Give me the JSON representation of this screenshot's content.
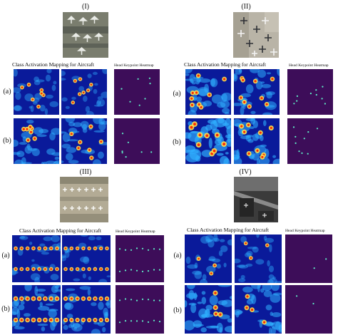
{
  "figure": {
    "panels": [
      {
        "numeral": "(I)",
        "cam_title": "Class Activation Mapping for Aircraft",
        "heatmap_title": "Head Keypoint Heatmap",
        "rows": [
          {
            "label": "(a)",
            "keypoints": 7
          },
          {
            "label": "(b)",
            "keypoints": 7
          }
        ]
      },
      {
        "numeral": "(II)",
        "cam_title": "Class Activation Mapping for Aircraft",
        "heatmap_title": "Head Keypoint Heatmap",
        "rows": [
          {
            "label": "(a)",
            "keypoints": 9
          },
          {
            "label": "(b)",
            "keypoints": 9
          }
        ]
      },
      {
        "numeral": "(III)",
        "cam_title": "Class Activation Mapping for Aircraft",
        "heatmap_title": "Head Keypoint Heatmap",
        "rows": [
          {
            "label": "(a)",
            "keypoints": 16
          },
          {
            "label": "(b)",
            "keypoints": 16
          }
        ]
      },
      {
        "numeral": "(IV)",
        "cam_title": "Class Activation Mapping for Aircraft",
        "heatmap_title": "Head Keypoint Heatmap",
        "rows": [
          {
            "label": "(a)",
            "keypoints": 2
          },
          {
            "label": "(b)",
            "keypoints": 2
          }
        ]
      }
    ],
    "colors": {
      "heatmap_background": "#3d0d59",
      "keypoint": "#5ff0c8",
      "cam_low": "#0a1a9a",
      "cam_mid": "#2fb0ff",
      "cam_high": "#ff2a00"
    }
  }
}
